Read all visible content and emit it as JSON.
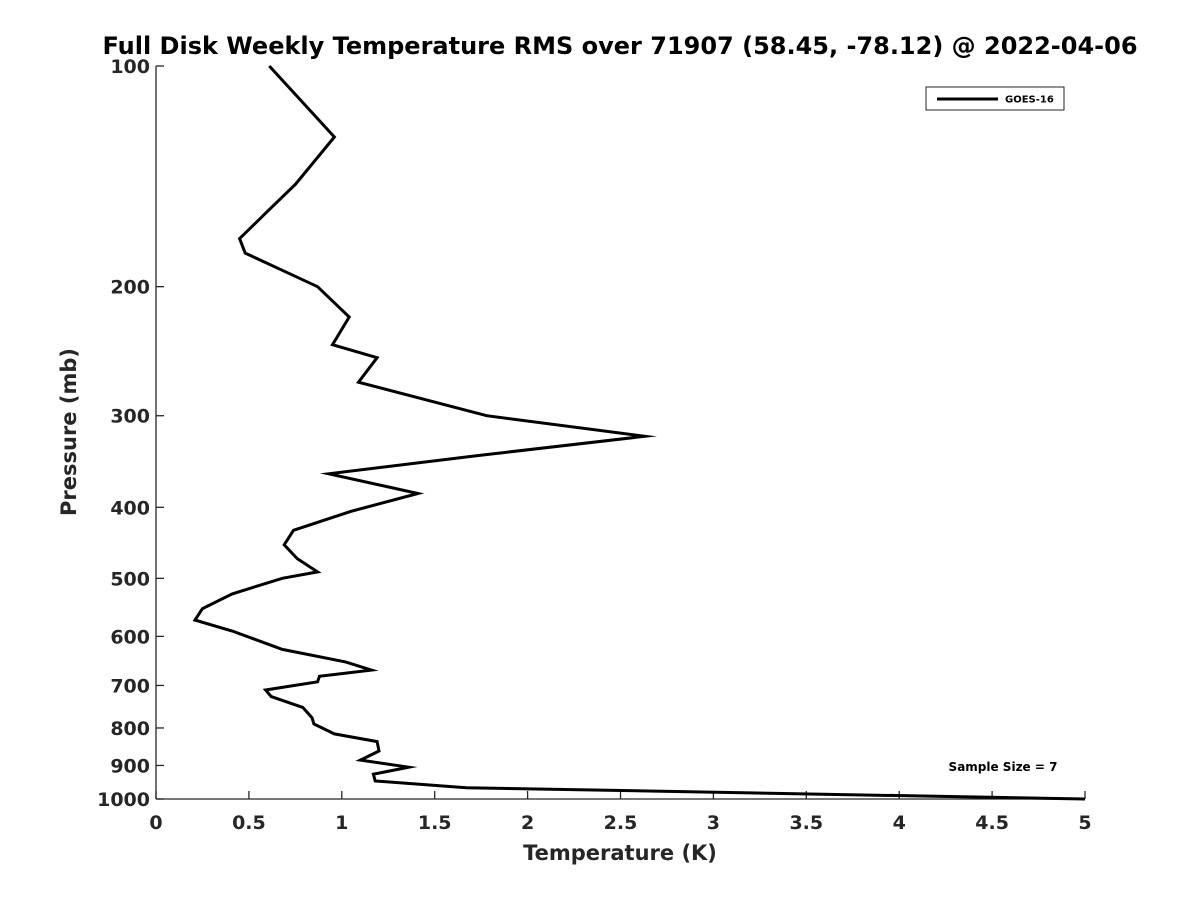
{
  "chart_data": {
    "type": "line",
    "title": "Full Disk Weekly Temperature RMS over 71907 (58.45, -78.12) @ 2022-04-06",
    "xlabel": "Temperature (K)",
    "ylabel": "Pressure (mb)",
    "xlim": [
      0,
      5
    ],
    "ylim": [
      100,
      1000
    ],
    "yscale": "log",
    "y_reversed": true,
    "x_ticks": [
      0,
      0.5,
      1,
      1.5,
      2,
      2.5,
      3,
      3.5,
      4,
      4.5,
      5
    ],
    "x_tick_labels": [
      "0",
      "0.5",
      "1",
      "1.5",
      "2",
      "2.5",
      "3",
      "3.5",
      "4",
      "4.5",
      "5"
    ],
    "y_ticks": [
      100,
      200,
      300,
      400,
      500,
      600,
      700,
      800,
      900,
      1000
    ],
    "y_tick_labels": [
      "100",
      "200",
      "300",
      "400",
      "500",
      "600",
      "700",
      "800",
      "900",
      "1000"
    ],
    "grid": false,
    "legend_position": "top-right",
    "annotation": "Sample Size = 7",
    "series": [
      {
        "name": "GOES-16",
        "color": "#000000",
        "x": [
          0.61,
          0.96,
          0.75,
          0.61,
          0.45,
          0.48,
          0.68,
          0.87,
          1.04,
          0.95,
          1.19,
          1.09,
          1.78,
          2.63,
          1.73,
          0.93,
          1.41,
          1.05,
          0.74,
          0.69,
          0.76,
          0.87,
          0.68,
          0.41,
          0.25,
          0.21,
          0.41,
          0.68,
          1.02,
          1.16,
          0.88,
          0.87,
          0.59,
          0.62,
          0.79,
          0.84,
          0.85,
          0.96,
          1.19,
          1.2,
          1.1,
          1.36,
          1.17,
          1.18,
          1.67,
          5.0
        ],
        "y": [
          100,
          125,
          145,
          157,
          172,
          180,
          190,
          200,
          220,
          240,
          250,
          270,
          300,
          320,
          340,
          360,
          383,
          405,
          430,
          450,
          470,
          490,
          500,
          525,
          550,
          570,
          590,
          625,
          650,
          667,
          680,
          692,
          710,
          725,
          750,
          775,
          790,
          815,
          835,
          860,
          885,
          905,
          925,
          945,
          965,
          1000
        ]
      }
    ]
  }
}
